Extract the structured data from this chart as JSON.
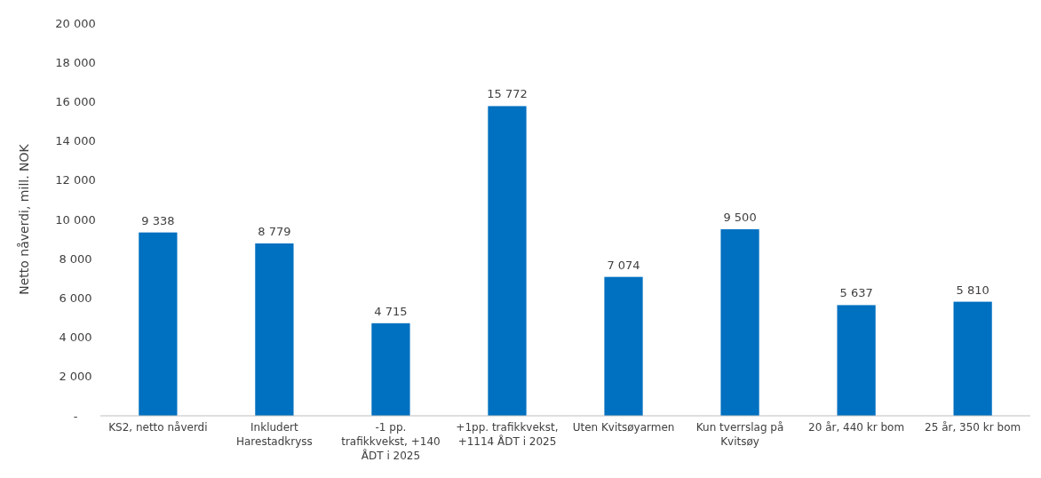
{
  "chart_data": {
    "type": "bar",
    "ylabel": "Netto nåverdi, mill. NOK",
    "categories": [
      "KS2, netto nåverdi",
      "Inkludert Harestadkryss",
      "-1 pp. trafikkvekst, +140 ÅDT i 2025",
      "+1pp. trafikkvekst, +1114 ÅDT i 2025",
      "Uten Kvitsøyarmen",
      "Kun tverrslag på Kvitsøy",
      "20 år, 440 kr bom",
      "25 år, 350 kr bom"
    ],
    "values": [
      9338,
      8779,
      4715,
      15772,
      7074,
      9500,
      5637,
      5810
    ],
    "value_labels": [
      "9 338",
      "8 779",
      "4 715",
      "15 772",
      "7 074",
      "9 500",
      "5 637",
      "5 810"
    ],
    "color": "#0070c0",
    "ylim": [
      0,
      20000
    ],
    "yticks": [
      {
        "value": 0,
        "label": "-"
      },
      {
        "value": 2000,
        "label": "2 000"
      },
      {
        "value": 4000,
        "label": "4 000"
      },
      {
        "value": 6000,
        "label": "6 000"
      },
      {
        "value": 8000,
        "label": "8 000"
      },
      {
        "value": 10000,
        "label": "10 000"
      },
      {
        "value": 12000,
        "label": "12 000"
      },
      {
        "value": 14000,
        "label": "14 000"
      },
      {
        "value": 16000,
        "label": "16 000"
      },
      {
        "value": 18000,
        "label": "18 000"
      },
      {
        "value": 20000,
        "label": "20 000"
      }
    ],
    "grid": false
  }
}
